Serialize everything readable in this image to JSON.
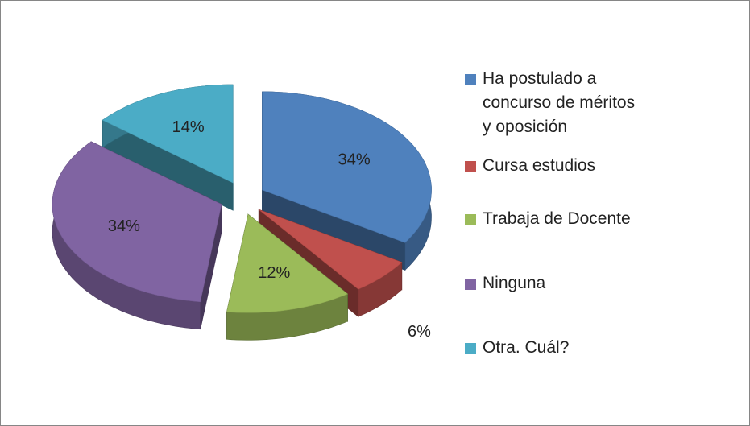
{
  "chart_data": {
    "type": "pie",
    "categories": [
      "Ha postulado a concurso de méritos y oposición",
      "Cursa estudios",
      "Trabaja de Docente",
      "Ninguna",
      "Otra. Cuál?"
    ],
    "values": [
      34,
      6,
      12,
      34,
      14
    ],
    "value_labels": [
      "34%",
      "6%",
      "12%",
      "34%",
      "14%"
    ],
    "colors": [
      "#4f81bd",
      "#c0504d",
      "#9bbb59",
      "#8064a2",
      "#4bacc6"
    ],
    "legend": "right"
  }
}
